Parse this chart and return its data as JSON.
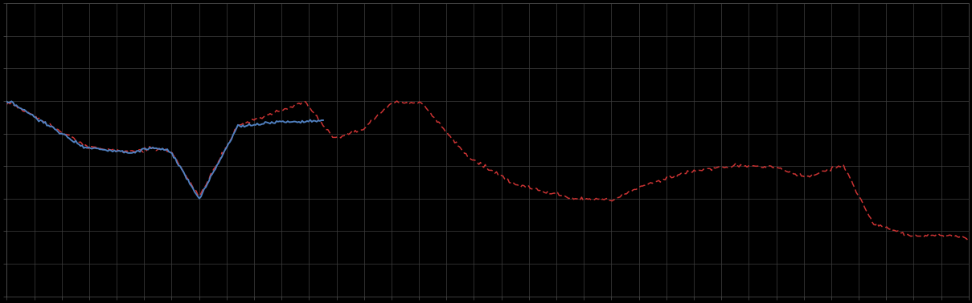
{
  "background_color": "#000000",
  "plot_bg_color": "#000000",
  "grid_color": "#404040",
  "line_blue_color": "#5080c0",
  "line_red_color": "#cc3333",
  "figsize": [
    12.09,
    3.78
  ],
  "dpi": 100,
  "xlim": [
    0,
    100
  ],
  "ylim": [
    0,
    10
  ],
  "n_xgrid": 35,
  "n_ygrid": 9,
  "grid_alpha": 1.0,
  "grid_linewidth": 0.5,
  "blue_linewidth": 1.4,
  "red_linewidth": 1.1
}
